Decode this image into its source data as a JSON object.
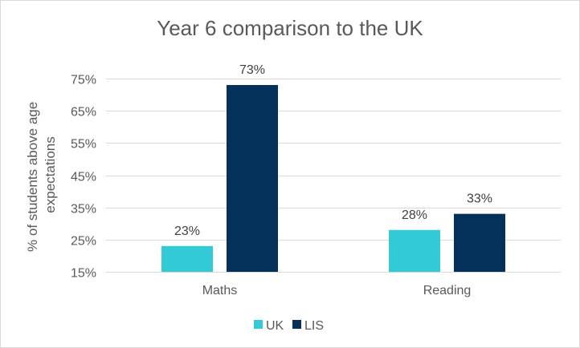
{
  "chart_data": {
    "type": "bar",
    "title": "Year 6 comparison to the UK",
    "ylabel_lines": [
      "% of students above age",
      "expectations"
    ],
    "categories": [
      "Maths",
      "Reading"
    ],
    "series": [
      {
        "name": "UK",
        "values": [
          23,
          28
        ],
        "labels": [
          "23%",
          "28%"
        ],
        "color": "#33cad8"
      },
      {
        "name": "LIS",
        "values": [
          73,
          33
        ],
        "labels": [
          "73%",
          "33%"
        ],
        "color": "#03315a"
      }
    ],
    "yticks": [
      15,
      25,
      35,
      45,
      55,
      65,
      75
    ],
    "ytick_labels": [
      "15%",
      "25%",
      "35%",
      "45%",
      "55%",
      "65%",
      "75%"
    ],
    "ylim": [
      15,
      75
    ],
    "grid": true,
    "legend_position": "bottom"
  }
}
